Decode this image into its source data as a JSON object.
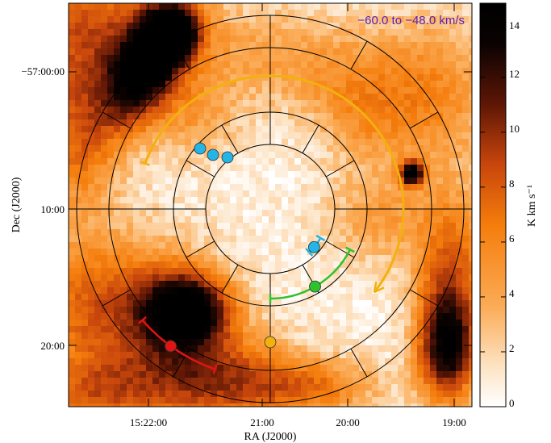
{
  "chart_data": {
    "type": "heatmap",
    "title": "",
    "velocity_range_label": "−60.0 to −48.0 km/s",
    "velocity_label_color": "#5b21b6",
    "xlabel": "RA (J2000)",
    "ylabel": "Dec (J2000)",
    "x_ticks": [
      "15:22:00",
      "21:00",
      "20:00",
      "19:00"
    ],
    "y_ticks": [
      "−57:00:00",
      "10:00",
      "20:00"
    ],
    "colorbar": {
      "label": "K km s⁻¹",
      "ticks": [
        "0",
        "2",
        "4",
        "6",
        "8",
        "10",
        "12",
        "14"
      ],
      "range": [
        0,
        14.7
      ],
      "colors": [
        "#ffffff",
        "#fdd9b0",
        "#fba34e",
        "#f57d0c",
        "#c8460c",
        "#6e1a08",
        "#000000"
      ]
    },
    "overlay": {
      "ring_count": 4,
      "spoke_count": 12
    },
    "arc_markers": [
      {
        "color": "#22b5e6",
        "kind": "dots",
        "count": 3
      },
      {
        "color": "#22b5e6",
        "kind": "arc"
      },
      {
        "color": "#2ec22e",
        "kind": "arc"
      },
      {
        "color": "#f2b10d",
        "kind": "arc-arrow"
      },
      {
        "color": "#e01414",
        "kind": "arc"
      }
    ]
  }
}
